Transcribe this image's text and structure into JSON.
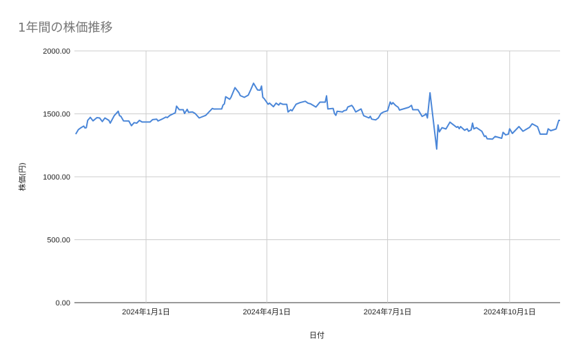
{
  "chart_data": {
    "type": "line",
    "title": "1年間の株価推移",
    "xlabel": "日付",
    "ylabel": "株価(円)",
    "xlim": [
      "2023-11-08",
      "2024-11-08"
    ],
    "ylim": [
      0,
      2000
    ],
    "y_ticks": [
      "0.00",
      "500.00",
      "1000.00",
      "1500.00",
      "2000.00"
    ],
    "x_ticks": [
      {
        "date": "2024-01-01",
        "label": "2024年1月1日"
      },
      {
        "date": "2024-04-01",
        "label": "2024年4月1日"
      },
      {
        "date": "2024-07-01",
        "label": "2024年7月1日"
      },
      {
        "date": "2024-10-01",
        "label": "2024年10月1日"
      }
    ],
    "grid": true,
    "legend": "none",
    "line_color": "#4a86d8",
    "points": [
      [
        "2023-11-09",
        1339
      ],
      [
        "2023-11-11",
        1375
      ],
      [
        "2023-11-13",
        1390
      ],
      [
        "2023-11-15",
        1403
      ],
      [
        "2023-11-16",
        1388
      ],
      [
        "2023-11-17",
        1390
      ],
      [
        "2023-11-18",
        1448
      ],
      [
        "2023-11-20",
        1472
      ],
      [
        "2023-11-22",
        1444
      ],
      [
        "2023-11-25",
        1470
      ],
      [
        "2023-11-27",
        1467
      ],
      [
        "2023-11-29",
        1439
      ],
      [
        "2023-12-01",
        1467
      ],
      [
        "2023-12-04",
        1448
      ],
      [
        "2023-12-05",
        1426
      ],
      [
        "2023-12-08",
        1485
      ],
      [
        "2023-12-11",
        1521
      ],
      [
        "2023-12-12",
        1485
      ],
      [
        "2023-12-13",
        1481
      ],
      [
        "2023-12-15",
        1444
      ],
      [
        "2023-12-19",
        1443
      ],
      [
        "2023-12-21",
        1406
      ],
      [
        "2023-12-23",
        1430
      ],
      [
        "2023-12-25",
        1426
      ],
      [
        "2023-12-27",
        1448
      ],
      [
        "2023-12-29",
        1435
      ],
      [
        "2024-01-04",
        1435
      ],
      [
        "2024-01-06",
        1454
      ],
      [
        "2024-01-09",
        1458
      ],
      [
        "2024-01-10",
        1443
      ],
      [
        "2024-01-13",
        1458
      ],
      [
        "2024-01-16",
        1475
      ],
      [
        "2024-01-17",
        1470
      ],
      [
        "2024-01-19",
        1488
      ],
      [
        "2024-01-23",
        1508
      ],
      [
        "2024-01-24",
        1561
      ],
      [
        "2024-01-26",
        1533
      ],
      [
        "2024-01-29",
        1533
      ],
      [
        "2024-01-30",
        1503
      ],
      [
        "2024-02-01",
        1536
      ],
      [
        "2024-02-02",
        1512
      ],
      [
        "2024-02-05",
        1515
      ],
      [
        "2024-02-07",
        1503
      ],
      [
        "2024-02-10",
        1467
      ],
      [
        "2024-02-15",
        1488
      ],
      [
        "2024-02-20",
        1543
      ],
      [
        "2024-02-21",
        1538
      ],
      [
        "2024-02-27",
        1539
      ],
      [
        "2024-02-28",
        1570
      ],
      [
        "2024-02-29",
        1579
      ],
      [
        "2024-03-01",
        1636
      ],
      [
        "2024-03-04",
        1616
      ],
      [
        "2024-03-05",
        1631
      ],
      [
        "2024-03-08",
        1708
      ],
      [
        "2024-03-11",
        1667
      ],
      [
        "2024-03-12",
        1645
      ],
      [
        "2024-03-15",
        1631
      ],
      [
        "2024-03-18",
        1648
      ],
      [
        "2024-03-20",
        1694
      ],
      [
        "2024-03-22",
        1743
      ],
      [
        "2024-03-25",
        1690
      ],
      [
        "2024-03-27",
        1688
      ],
      [
        "2024-03-28",
        1721
      ],
      [
        "2024-03-29",
        1631
      ],
      [
        "2024-03-30",
        1621
      ],
      [
        "2024-04-02",
        1576
      ],
      [
        "2024-04-03",
        1585
      ],
      [
        "2024-04-06",
        1557
      ],
      [
        "2024-04-08",
        1585
      ],
      [
        "2024-04-10",
        1570
      ],
      [
        "2024-04-11",
        1585
      ],
      [
        "2024-04-13",
        1576
      ],
      [
        "2024-04-16",
        1576
      ],
      [
        "2024-04-17",
        1515
      ],
      [
        "2024-04-19",
        1533
      ],
      [
        "2024-04-20",
        1524
      ],
      [
        "2024-04-23",
        1576
      ],
      [
        "2024-04-26",
        1589
      ],
      [
        "2024-04-30",
        1600
      ],
      [
        "2024-05-02",
        1585
      ],
      [
        "2024-05-04",
        1579
      ],
      [
        "2024-05-08",
        1554
      ],
      [
        "2024-05-11",
        1593
      ],
      [
        "2024-05-15",
        1593
      ],
      [
        "2024-05-16",
        1643
      ],
      [
        "2024-05-17",
        1539
      ],
      [
        "2024-05-21",
        1543
      ],
      [
        "2024-05-22",
        1503
      ],
      [
        "2024-05-23",
        1488
      ],
      [
        "2024-05-24",
        1521
      ],
      [
        "2024-05-28",
        1515
      ],
      [
        "2024-05-29",
        1524
      ],
      [
        "2024-05-31",
        1530
      ],
      [
        "2024-06-01",
        1554
      ],
      [
        "2024-06-04",
        1567
      ],
      [
        "2024-06-05",
        1554
      ],
      [
        "2024-06-07",
        1515
      ],
      [
        "2024-06-11",
        1539
      ],
      [
        "2024-06-13",
        1485
      ],
      [
        "2024-06-17",
        1467
      ],
      [
        "2024-06-18",
        1481
      ],
      [
        "2024-06-19",
        1458
      ],
      [
        "2024-06-22",
        1452
      ],
      [
        "2024-06-24",
        1467
      ],
      [
        "2024-06-26",
        1503
      ],
      [
        "2024-06-28",
        1515
      ],
      [
        "2024-07-01",
        1525
      ],
      [
        "2024-07-03",
        1594
      ],
      [
        "2024-07-04",
        1576
      ],
      [
        "2024-07-05",
        1589
      ],
      [
        "2024-07-07",
        1567
      ],
      [
        "2024-07-09",
        1552
      ],
      [
        "2024-07-10",
        1530
      ],
      [
        "2024-07-17",
        1552
      ],
      [
        "2024-07-19",
        1567
      ],
      [
        "2024-07-20",
        1533
      ],
      [
        "2024-07-24",
        1533
      ],
      [
        "2024-07-27",
        1479
      ],
      [
        "2024-07-29",
        1490
      ],
      [
        "2024-07-30",
        1503
      ],
      [
        "2024-07-31",
        1467
      ],
      [
        "2024-08-02",
        1667
      ],
      [
        "2024-08-07",
        1220
      ],
      [
        "2024-08-08",
        1412
      ],
      [
        "2024-08-09",
        1357
      ],
      [
        "2024-08-11",
        1390
      ],
      [
        "2024-08-14",
        1380
      ],
      [
        "2024-08-17",
        1434
      ],
      [
        "2024-08-22",
        1393
      ],
      [
        "2024-08-23",
        1399
      ],
      [
        "2024-08-24",
        1382
      ],
      [
        "2024-08-25",
        1399
      ],
      [
        "2024-08-28",
        1370
      ],
      [
        "2024-08-30",
        1381
      ],
      [
        "2024-08-31",
        1362
      ],
      [
        "2024-09-02",
        1372
      ],
      [
        "2024-09-03",
        1426
      ],
      [
        "2024-09-04",
        1381
      ],
      [
        "2024-09-06",
        1390
      ],
      [
        "2024-09-10",
        1362
      ],
      [
        "2024-09-12",
        1320
      ],
      [
        "2024-09-13",
        1325
      ],
      [
        "2024-09-14",
        1302
      ],
      [
        "2024-09-18",
        1299
      ],
      [
        "2024-09-20",
        1320
      ],
      [
        "2024-09-25",
        1306
      ],
      [
        "2024-09-26",
        1353
      ],
      [
        "2024-09-28",
        1333
      ],
      [
        "2024-09-30",
        1339
      ],
      [
        "2024-10-01",
        1381
      ],
      [
        "2024-10-03",
        1344
      ],
      [
        "2024-10-08",
        1399
      ],
      [
        "2024-10-11",
        1362
      ],
      [
        "2024-10-16",
        1393
      ],
      [
        "2024-10-18",
        1421
      ],
      [
        "2024-10-22",
        1397
      ],
      [
        "2024-10-24",
        1339
      ],
      [
        "2024-10-29",
        1339
      ],
      [
        "2024-10-30",
        1381
      ],
      [
        "2024-11-01",
        1366
      ],
      [
        "2024-11-05",
        1380
      ],
      [
        "2024-11-07",
        1448
      ],
      [
        "2024-11-08",
        1448
      ]
    ]
  }
}
